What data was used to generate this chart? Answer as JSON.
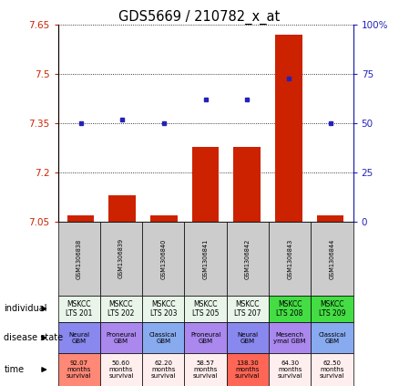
{
  "title": "GDS5669 / 210782_x_at",
  "samples": [
    "GSM1306838",
    "GSM1306839",
    "GSM1306840",
    "GSM1306841",
    "GSM1306842",
    "GSM1306843",
    "GSM1306844"
  ],
  "transformed_count": [
    7.07,
    7.13,
    7.07,
    7.28,
    7.28,
    7.62,
    7.07
  ],
  "percentile_rank": [
    50,
    52,
    50,
    62,
    62,
    73,
    50
  ],
  "ylim_left": [
    7.05,
    7.65
  ],
  "ylim_right": [
    0,
    100
  ],
  "yticks_left": [
    7.05,
    7.2,
    7.35,
    7.5,
    7.65
  ],
  "yticks_right": [
    0,
    25,
    50,
    75,
    100
  ],
  "individual": [
    "MSKCC\nLTS 201",
    "MSKCC\nLTS 202",
    "MSKCC\nLTS 203",
    "MSKCC\nLTS 205",
    "MSKCC\nLTS 207",
    "MSKCC\nLTS 208",
    "MSKCC\nLTS 209"
  ],
  "individual_colors": [
    "#e8f5e8",
    "#e8f5e8",
    "#e8f5e8",
    "#e8f5e8",
    "#e8f5e8",
    "#44dd44",
    "#44dd44"
  ],
  "disease_state": [
    "Neural\nGBM",
    "Proneural\nGBM",
    "Classical\nGBM",
    "Proneural\nGBM",
    "Neural\nGBM",
    "Mesench\nymal GBM",
    "Classical\nGBM"
  ],
  "disease_state_colors": [
    "#8888ee",
    "#aa88ee",
    "#88aaee",
    "#aa88ee",
    "#8888ee",
    "#aa88ee",
    "#88aaee"
  ],
  "time": [
    "92.07\nmonths\nsurvival",
    "50.60\nmonths\nsurvival",
    "62.20\nmonths\nsurvival",
    "58.57\nmonths\nsurvival",
    "138.30\nmonths\nsurvival",
    "64.30\nmonths\nsurvival",
    "62.50\nmonths\nsurvival"
  ],
  "time_colors": [
    "#ff8877",
    "#ffeeee",
    "#ffeeee",
    "#ffeeee",
    "#ff6655",
    "#ffeeee",
    "#ffeeee"
  ],
  "bar_color": "#cc2200",
  "dot_color": "#2222bb",
  "left_label_color": "#cc2200",
  "right_label_color": "#2222bb"
}
